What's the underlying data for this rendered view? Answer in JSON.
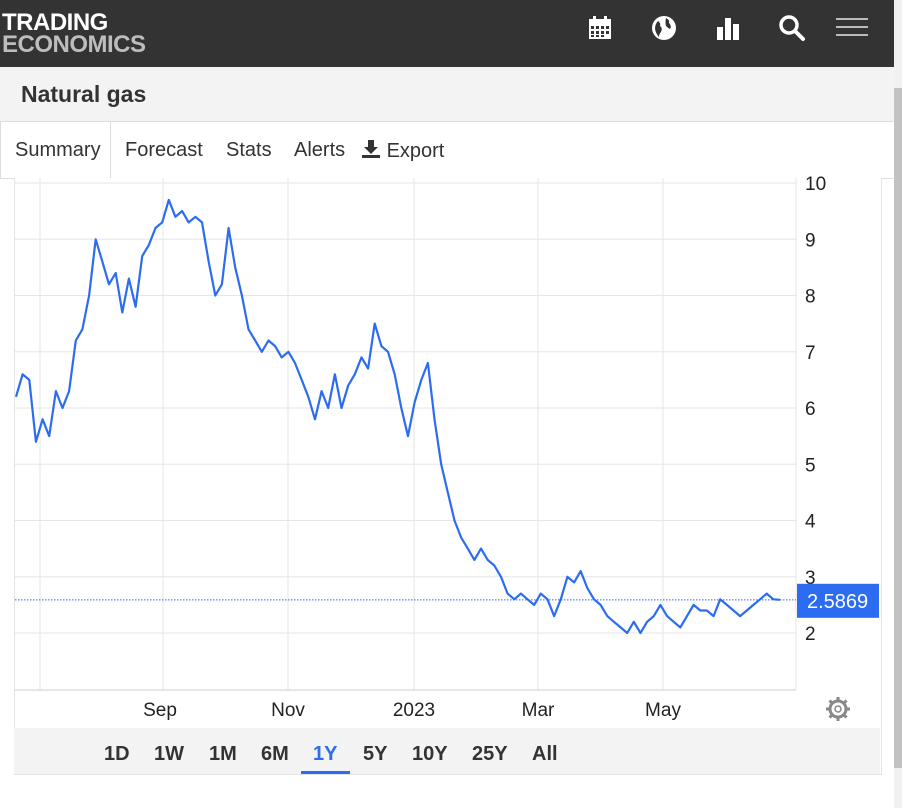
{
  "header": {
    "logo_line1": "TRADING",
    "logo_line2": "ECONOMICS",
    "icons": [
      "calendar-icon",
      "globe-icon",
      "bar-chart-icon",
      "search-icon",
      "menu-icon"
    ]
  },
  "page": {
    "title": "Natural gas"
  },
  "tabs": [
    {
      "label": "Summary"
    },
    {
      "label": "Forecast"
    },
    {
      "label": "Stats"
    },
    {
      "label": "Alerts"
    },
    {
      "label": "Export",
      "icon": "download-icon"
    }
  ],
  "colors": {
    "line": "#2b6cf0",
    "header_bg": "#333333",
    "accent": "#2b6cf0"
  },
  "range_buttons": [
    "1D",
    "1W",
    "1M",
    "6M",
    "1Y",
    "5Y",
    "10Y",
    "25Y",
    "All"
  ],
  "active_range": "1Y",
  "settings_icon": "gear-icon",
  "chart_data": {
    "type": "line",
    "title": "",
    "xlabel": "",
    "ylabel": "",
    "x_ticks": [
      "Sep",
      "Nov",
      "2023",
      "Mar",
      "May"
    ],
    "y_ticks": [
      2,
      3,
      4,
      5,
      6,
      7,
      8,
      9,
      10
    ],
    "ylim": [
      1.0,
      10.0
    ],
    "grid": true,
    "last_value": "2.5869",
    "series": [
      {
        "values": [
          6.2,
          6.6,
          6.5,
          5.4,
          5.8,
          5.5,
          6.3,
          6.0,
          6.3,
          7.2,
          7.4,
          8.0,
          9.0,
          8.6,
          8.2,
          8.4,
          7.7,
          8.3,
          7.8,
          8.7,
          8.9,
          9.2,
          9.3,
          9.7,
          9.4,
          9.5,
          9.3,
          9.4,
          9.3,
          8.6,
          8.0,
          8.2,
          9.2,
          8.5,
          8.0,
          7.4,
          7.2,
          7.0,
          7.2,
          7.1,
          6.9,
          7.0,
          6.8,
          6.5,
          6.2,
          5.8,
          6.3,
          6.0,
          6.6,
          6.0,
          6.4,
          6.6,
          6.9,
          6.7,
          7.5,
          7.1,
          7.0,
          6.6,
          6.0,
          5.5,
          6.1,
          6.5,
          6.8,
          5.8,
          5.0,
          4.5,
          4.0,
          3.7,
          3.5,
          3.3,
          3.5,
          3.3,
          3.2,
          3.0,
          2.7,
          2.6,
          2.7,
          2.6,
          2.5,
          2.7,
          2.6,
          2.3,
          2.6,
          3.0,
          2.9,
          3.1,
          2.8,
          2.6,
          2.5,
          2.3,
          2.2,
          2.1,
          2.0,
          2.2,
          2.0,
          2.2,
          2.3,
          2.5,
          2.3,
          2.2,
          2.1,
          2.3,
          2.5,
          2.4,
          2.4,
          2.3,
          2.6,
          2.5,
          2.4,
          2.3,
          2.4,
          2.5,
          2.6,
          2.7,
          2.6,
          2.59
        ]
      }
    ]
  }
}
